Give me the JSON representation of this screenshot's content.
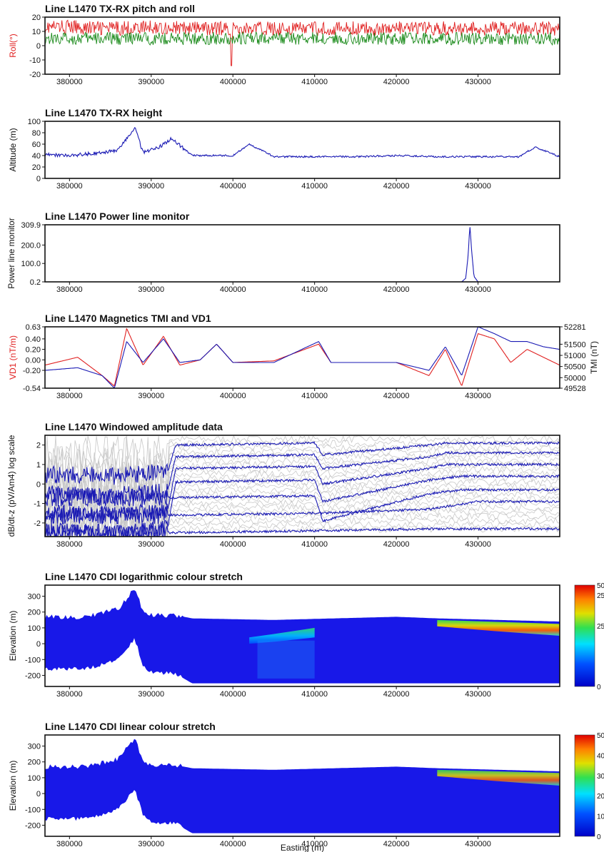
{
  "chart_data": [
    {
      "id": "pitch-roll",
      "type": "line",
      "title": "Line L1470 TX-RX pitch and roll",
      "ylabel": "Roll(°)",
      "ylabel_color": "#e02020",
      "xlim": [
        377000,
        440000
      ],
      "ylim": [
        -20,
        20
      ],
      "yticks": [
        -20,
        -10,
        0,
        10,
        20
      ],
      "xticks": [
        380000,
        390000,
        400000,
        410000,
        420000,
        430000
      ],
      "series": [
        {
          "color": "#e02020",
          "role": "roll",
          "x": [
            377000,
            380000,
            385000,
            390000,
            395000,
            400000,
            405000,
            410000,
            415000,
            420000,
            425000,
            430000,
            435000,
            440000
          ],
          "y": [
            13,
            13,
            12,
            13,
            12,
            12,
            12,
            12,
            12,
            12,
            12,
            12,
            12,
            12
          ]
        },
        {
          "color": "#1a8a1a",
          "role": "pitch",
          "x": [
            377000,
            380000,
            385000,
            390000,
            395000,
            400000,
            405000,
            410000,
            415000,
            420000,
            425000,
            430000,
            435000,
            440000
          ],
          "y": [
            5,
            5,
            5,
            5,
            5,
            5,
            5,
            5,
            5,
            5,
            5,
            5,
            5,
            5
          ]
        }
      ]
    },
    {
      "id": "height",
      "type": "line",
      "title": "Line L1470 TX-RX height",
      "ylabel": "Altitude (m)",
      "xlim": [
        377000,
        440000
      ],
      "ylim": [
        0,
        100
      ],
      "yticks": [
        0,
        20,
        40,
        60,
        80,
        100
      ],
      "xticks": [
        380000,
        390000,
        400000,
        410000,
        420000,
        430000
      ],
      "series": [
        {
          "color": "#1a1ab4",
          "x": [
            377000,
            380000,
            384000,
            386000,
            388000,
            389000,
            391000,
            392500,
            395000,
            400000,
            402000,
            405000,
            410000,
            415000,
            420000,
            425000,
            430000,
            435000,
            437000,
            440000
          ],
          "y": [
            42,
            40,
            45,
            50,
            90,
            45,
            55,
            70,
            40,
            40,
            60,
            38,
            38,
            38,
            40,
            38,
            38,
            38,
            55,
            38
          ]
        }
      ]
    },
    {
      "id": "power-line",
      "type": "line",
      "title": "Line L1470 Power line monitor",
      "ylabel": "Power line monitor",
      "xlim": [
        377000,
        440000
      ],
      "ylim": [
        0.2,
        309.9
      ],
      "yticks": [
        0.2,
        100.0,
        200.0,
        309.9
      ],
      "ytick_labels": [
        "0.2",
        "100.0",
        "200.0",
        "309.9"
      ],
      "xticks": [
        380000,
        390000,
        400000,
        410000,
        420000,
        430000
      ],
      "series": [
        {
          "color": "#1a1ab4",
          "x": [
            377000,
            428000,
            428500,
            428800,
            429000,
            429200,
            429500,
            430000,
            440000
          ],
          "y": [
            0.2,
            0.2,
            20,
            150,
            309.9,
            180,
            30,
            0.2,
            0.2
          ]
        }
      ]
    },
    {
      "id": "magnetics",
      "type": "line",
      "title": "Line L1470 Magnetics TMI and VD1",
      "ylabel": "VD1 (nT/m)",
      "ylabel_color": "#e02020",
      "ylabel_right": "TMI (nT)",
      "xlim": [
        377000,
        440000
      ],
      "ylim": [
        -0.54,
        0.63
      ],
      "yticks": [
        -0.54,
        -0.2,
        0.0,
        0.2,
        0.4,
        0.63
      ],
      "ytick_labels": [
        "-0.54",
        "-0.20",
        "0.00",
        "0.20",
        "0.40",
        "0.63"
      ],
      "y2lim": [
        49528,
        52281
      ],
      "y2ticks": [
        49528,
        50000,
        50500,
        51000,
        51500,
        52281
      ],
      "xticks": [
        380000,
        390000,
        400000,
        410000,
        420000,
        430000
      ],
      "series": [
        {
          "color": "#e02020",
          "axis": "left",
          "x": [
            377000,
            381000,
            384000,
            385500,
            387000,
            389000,
            391500,
            393500,
            396000,
            398000,
            400000,
            405000,
            410500,
            412000,
            420000,
            424000,
            426000,
            428000,
            430000,
            432000,
            434000,
            436000,
            438000,
            440000
          ],
          "y": [
            -0.1,
            0.05,
            -0.3,
            -0.5,
            0.6,
            -0.1,
            0.45,
            -0.1,
            0.0,
            0.3,
            -0.05,
            -0.02,
            0.3,
            -0.05,
            -0.05,
            -0.3,
            0.2,
            -0.5,
            0.5,
            0.4,
            -0.05,
            0.2,
            0.05,
            -0.1
          ]
        },
        {
          "color": "#1a1ab4",
          "axis": "left",
          "x": [
            377000,
            381000,
            384000,
            385500,
            387000,
            389000,
            391500,
            393500,
            396000,
            398000,
            400000,
            405000,
            410500,
            412000,
            420000,
            424000,
            426000,
            428000,
            430000,
            432000,
            434000,
            436000,
            438000,
            440000
          ],
          "y": [
            -0.2,
            -0.15,
            -0.3,
            -0.54,
            0.35,
            -0.05,
            0.4,
            -0.05,
            0.0,
            0.3,
            -0.05,
            -0.05,
            0.35,
            -0.05,
            -0.05,
            -0.2,
            0.25,
            -0.3,
            0.63,
            0.5,
            0.35,
            0.35,
            0.25,
            0.2
          ]
        }
      ]
    },
    {
      "id": "windowed-amplitude",
      "type": "line",
      "title": "Line L1470 Windowed amplitude data",
      "ylabel": "dB/dt-z (pV/Am4) log scale",
      "xlim": [
        377000,
        440000
      ],
      "ylim": [
        -2.7,
        2.5
      ],
      "yticks": [
        -2,
        -1,
        0,
        1,
        2
      ],
      "xticks": [
        380000,
        390000,
        400000,
        410000,
        420000,
        430000
      ],
      "series": [
        {
          "color": "#1a1ab4",
          "x": [
            377000,
            385000,
            392000,
            393000,
            410000,
            411000,
            424000,
            426000,
            440000
          ],
          "y": [
            0.5,
            0.4,
            0.6,
            2.0,
            2.1,
            1.5,
            2.0,
            2.1,
            2.1
          ]
        },
        {
          "color": "#1a1ab4",
          "x": [
            377000,
            385000,
            392000,
            393000,
            410000,
            411000,
            424000,
            426000,
            440000
          ],
          "y": [
            -0.5,
            -0.6,
            -0.4,
            1.4,
            1.5,
            0.8,
            1.4,
            1.6,
            1.6
          ]
        },
        {
          "color": "#1a1ab4",
          "x": [
            377000,
            385000,
            392000,
            393000,
            410000,
            411000,
            424000,
            426000,
            440000
          ],
          "y": [
            -1.5,
            -1.6,
            -1.4,
            0.8,
            0.9,
            0.0,
            0.8,
            1.0,
            1.0
          ]
        },
        {
          "color": "#1a1ab4",
          "x": [
            377000,
            385000,
            392000,
            393000,
            410000,
            411000,
            424000,
            428000,
            440000
          ],
          "y": [
            -2.4,
            -2.5,
            -2.3,
            0.1,
            0.2,
            -0.9,
            0.2,
            0.4,
            0.4
          ]
        },
        {
          "color": "#1a1ab4",
          "x": [
            393000,
            410000,
            411000,
            424000,
            428000,
            440000
          ],
          "y": [
            -0.7,
            -0.6,
            -1.9,
            -0.5,
            -0.3,
            -0.3
          ]
        },
        {
          "color": "#1a1ab4",
          "x": [
            393000,
            410000,
            424000,
            430000,
            440000
          ],
          "y": [
            -1.6,
            -1.5,
            -1.3,
            -0.9,
            -0.9
          ]
        },
        {
          "color": "#1a1ab4",
          "x": [
            393000,
            410000,
            424000
          ],
          "y": [
            -2.5,
            -2.4,
            -2.3
          ]
        }
      ]
    },
    {
      "id": "cdi-log",
      "type": "heatmap",
      "title": "Line L1470 CDI logarithmic colour stretch",
      "ylabel": "Elevation (m)",
      "xlim": [
        377000,
        440000
      ],
      "ylim": [
        -270,
        370
      ],
      "yticks": [
        -200,
        -100,
        0,
        100,
        200,
        300
      ],
      "xticks": [
        380000,
        390000,
        400000,
        410000,
        420000,
        430000
      ],
      "surface": {
        "x": [
          377000,
          382000,
          386000,
          388000,
          389000,
          390000,
          393000,
          395000,
          405000,
          420000,
          425000,
          440000
        ],
        "y": [
          170,
          170,
          220,
          350,
          200,
          180,
          180,
          160,
          150,
          170,
          160,
          140
        ]
      },
      "base": {
        "x": [
          377000,
          382000,
          386000,
          388000,
          389000,
          390000,
          393000,
          395000,
          405000,
          420000,
          425000,
          440000
        ],
        "y": [
          -160,
          -160,
          -100,
          30,
          -140,
          -180,
          -190,
          -250,
          -250,
          -250,
          -250,
          -250
        ]
      },
      "colorbar_labels": [
        "50",
        "25",
        "25",
        "0"
      ],
      "colorbar_positions": [
        1.0,
        0.9,
        0.6,
        0.0
      ]
    },
    {
      "id": "cdi-linear",
      "type": "heatmap",
      "title": "Line L1470 CDI linear colour stretch",
      "ylabel": "Elevation (m)",
      "xlabel": "Easting (m)",
      "xlim": [
        377000,
        440000
      ],
      "ylim": [
        -270,
        370
      ],
      "yticks": [
        -200,
        -100,
        0,
        100,
        200,
        300
      ],
      "xticks": [
        380000,
        390000,
        400000,
        410000,
        420000,
        430000
      ],
      "surface": {
        "x": [
          377000,
          382000,
          386000,
          388000,
          389000,
          390000,
          393000,
          395000,
          405000,
          420000,
          425000,
          440000
        ],
        "y": [
          170,
          170,
          220,
          350,
          200,
          180,
          180,
          160,
          150,
          170,
          160,
          140
        ]
      },
      "base": {
        "x": [
          377000,
          382000,
          386000,
          388000,
          389000,
          390000,
          393000,
          395000,
          405000,
          420000,
          425000,
          440000
        ],
        "y": [
          -160,
          -160,
          -100,
          30,
          -140,
          -180,
          -190,
          -250,
          -250,
          -250,
          -250,
          -250
        ]
      },
      "colorbar_labels": [
        "50",
        "40",
        "30",
        "20",
        "10",
        "0"
      ],
      "colorbar_positions": [
        1.0,
        0.8,
        0.6,
        0.4,
        0.2,
        0.0
      ]
    }
  ]
}
